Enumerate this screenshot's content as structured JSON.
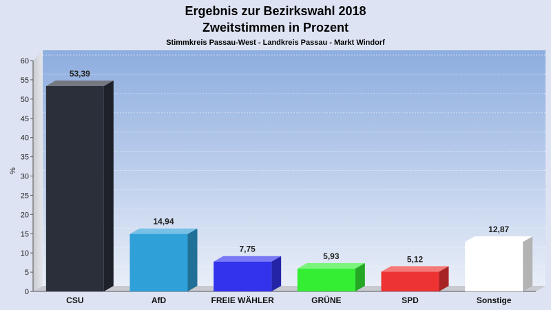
{
  "chart_data": {
    "type": "bar",
    "title": "Ergebnis zur Bezirkswahl 2018",
    "subtitle": "Zweitstimmen in Prozent",
    "subsubtitle": "Stimmkreis Passau-West - Landkreis Passau - Markt Windorf",
    "ylabel": "%",
    "ylim": [
      0,
      60
    ],
    "yticks": [
      0,
      5,
      10,
      15,
      20,
      25,
      30,
      35,
      40,
      45,
      50,
      55,
      60
    ],
    "grid": true,
    "categories": [
      "CSU",
      "AfD",
      "FREIE WÄHLER",
      "GRÜNE",
      "SPD",
      "Sonstige"
    ],
    "values": [
      53.39,
      14.94,
      7.75,
      5.93,
      5.12,
      12.87
    ],
    "value_labels": [
      "53,39",
      "14,94",
      "7,75",
      "5,93",
      "5,12",
      "12,87"
    ],
    "colors": [
      "#2b2f3a",
      "#2fa0d8",
      "#3333ee",
      "#33ee33",
      "#ee3333",
      "#ffffff"
    ]
  }
}
